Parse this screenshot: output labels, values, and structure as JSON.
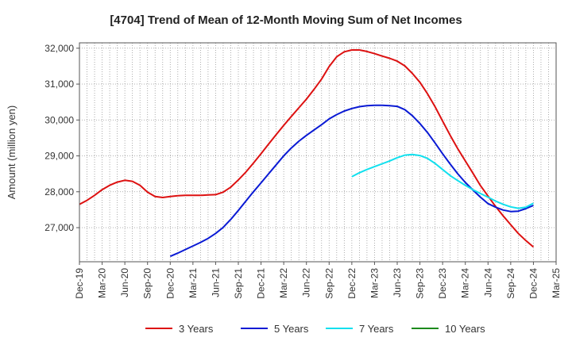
{
  "chart_data": {
    "type": "line",
    "title": "[4704]  Trend of Mean of 12-Month Moving Sum of Net Incomes",
    "ylabel": "Amount (million yen)",
    "xlabel": "",
    "ylim": [
      26050,
      32150
    ],
    "yticks": [
      27000,
      28000,
      29000,
      30000,
      31000,
      32000
    ],
    "ytick_labels": [
      "27,000",
      "28,000",
      "29,000",
      "30,000",
      "31,000",
      "32,000"
    ],
    "xlim": [
      "2019-12",
      "2025-03"
    ],
    "xtick_labels": [
      "Dec-19",
      "Mar-20",
      "Jun-20",
      "Sep-20",
      "Dec-20",
      "Mar-21",
      "Jun-21",
      "Sep-21",
      "Dec-21",
      "Mar-22",
      "Jun-22",
      "Sep-22",
      "Dec-22",
      "Mar-23",
      "Jun-23",
      "Sep-23",
      "Dec-23",
      "Mar-24",
      "Jun-24",
      "Sep-24",
      "Dec-24",
      "Mar-25"
    ],
    "grid": true,
    "legend_position": "bottom",
    "series": [
      {
        "name": "3 Years",
        "color": "#dd1111",
        "x": [
          "2019-12",
          "2020-01",
          "2020-02",
          "2020-03",
          "2020-04",
          "2020-05",
          "2020-06",
          "2020-07",
          "2020-08",
          "2020-09",
          "2020-10",
          "2020-11",
          "2020-12",
          "2021-01",
          "2021-02",
          "2021-03",
          "2021-04",
          "2021-05",
          "2021-06",
          "2021-07",
          "2021-08",
          "2021-09",
          "2021-10",
          "2021-11",
          "2021-12",
          "2022-01",
          "2022-02",
          "2022-03",
          "2022-04",
          "2022-05",
          "2022-06",
          "2022-07",
          "2022-08",
          "2022-09",
          "2022-10",
          "2022-11",
          "2022-12",
          "2023-01",
          "2023-02",
          "2023-03",
          "2023-04",
          "2023-05",
          "2023-06",
          "2023-07",
          "2023-08",
          "2023-09",
          "2023-10",
          "2023-11",
          "2023-12",
          "2024-01",
          "2024-02",
          "2024-03",
          "2024-04",
          "2024-05",
          "2024-06",
          "2024-07",
          "2024-08",
          "2024-09",
          "2024-10",
          "2024-11",
          "2024-12"
        ],
        "values": [
          27650,
          27760,
          27900,
          28060,
          28180,
          28270,
          28320,
          28290,
          28180,
          27990,
          27870,
          27840,
          27870,
          27890,
          27900,
          27900,
          27900,
          27910,
          27920,
          27990,
          28130,
          28330,
          28550,
          28800,
          29060,
          29330,
          29590,
          29850,
          30100,
          30340,
          30580,
          30850,
          31140,
          31490,
          31760,
          31900,
          31950,
          31950,
          31910,
          31850,
          31780,
          31720,
          31640,
          31510,
          31300,
          31050,
          30730,
          30370,
          29970,
          29570,
          29200,
          28860,
          28520,
          28170,
          27880,
          27590,
          27330,
          27080,
          26840,
          26640,
          26460
        ]
      },
      {
        "name": "5 Years",
        "color": "#0a1ad4",
        "x": [
          "2020-12",
          "2021-01",
          "2021-02",
          "2021-03",
          "2021-04",
          "2021-05",
          "2021-06",
          "2021-07",
          "2021-08",
          "2021-09",
          "2021-10",
          "2021-11",
          "2021-12",
          "2022-01",
          "2022-02",
          "2022-03",
          "2022-04",
          "2022-05",
          "2022-06",
          "2022-07",
          "2022-08",
          "2022-09",
          "2022-10",
          "2022-11",
          "2022-12",
          "2023-01",
          "2023-02",
          "2023-03",
          "2023-04",
          "2023-05",
          "2023-06",
          "2023-07",
          "2023-08",
          "2023-09",
          "2023-10",
          "2023-11",
          "2023-12",
          "2024-01",
          "2024-02",
          "2024-03",
          "2024-04",
          "2024-05",
          "2024-06",
          "2024-07",
          "2024-08",
          "2024-09",
          "2024-10",
          "2024-11",
          "2024-12"
        ],
        "values": [
          26200,
          26290,
          26390,
          26490,
          26590,
          26700,
          26840,
          27010,
          27230,
          27480,
          27740,
          28000,
          28250,
          28500,
          28750,
          29000,
          29220,
          29410,
          29570,
          29720,
          29870,
          30030,
          30150,
          30250,
          30320,
          30370,
          30400,
          30410,
          30410,
          30400,
          30380,
          30290,
          30120,
          29900,
          29650,
          29360,
          29060,
          28770,
          28500,
          28260,
          28050,
          27850,
          27670,
          27570,
          27490,
          27450,
          27460,
          27530,
          27620
        ]
      },
      {
        "name": "7 Years",
        "color": "#11e0ee",
        "x": [
          "2022-12",
          "2023-01",
          "2023-02",
          "2023-03",
          "2023-04",
          "2023-05",
          "2023-06",
          "2023-07",
          "2023-08",
          "2023-09",
          "2023-10",
          "2023-11",
          "2023-12",
          "2024-01",
          "2024-02",
          "2024-03",
          "2024-04",
          "2024-05",
          "2024-06",
          "2024-07",
          "2024-08",
          "2024-09",
          "2024-10",
          "2024-11",
          "2024-12"
        ],
        "values": [
          28420,
          28530,
          28620,
          28700,
          28780,
          28860,
          28950,
          29020,
          29040,
          29010,
          28930,
          28790,
          28620,
          28450,
          28310,
          28180,
          28060,
          27950,
          27850,
          27740,
          27650,
          27580,
          27540,
          27570,
          27680
        ]
      },
      {
        "name": "10 Years",
        "color": "#1c8a1c",
        "x": [],
        "values": []
      }
    ]
  }
}
